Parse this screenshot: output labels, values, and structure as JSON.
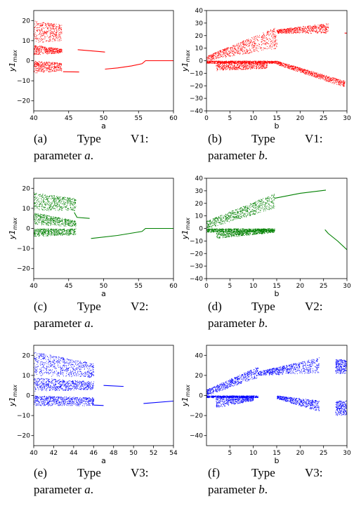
{
  "chart_data": [
    {
      "id": "a",
      "type": "scatter",
      "color": "#ff0000",
      "xlabel": "a",
      "ylabel": "y1_max",
      "xlim": [
        40,
        60
      ],
      "ylim": [
        -25,
        25
      ],
      "xticks": [
        40,
        45,
        50,
        55,
        60
      ],
      "yticks": [
        -20,
        -10,
        0,
        10,
        20
      ],
      "features": [
        {
          "kind": "band",
          "x": [
            40,
            44
          ],
          "y_low": [
            9,
            10
          ],
          "y_high": [
            20,
            18
          ]
        },
        {
          "kind": "band",
          "x": [
            40,
            44
          ],
          "y_low": [
            3,
            4
          ],
          "y_high": [
            8,
            6
          ]
        },
        {
          "kind": "band",
          "x": [
            40,
            44
          ],
          "y_low": [
            -6,
            -5
          ],
          "y_high": [
            0,
            -1
          ]
        },
        {
          "kind": "line",
          "points": [
            [
              44.2,
              -5.5
            ],
            [
              46.5,
              -5.6
            ]
          ]
        },
        {
          "kind": "line",
          "points": [
            [
              46.3,
              5.5
            ],
            [
              50.2,
              4.3
            ]
          ]
        },
        {
          "kind": "line",
          "points": [
            [
              50.2,
              -4.2
            ],
            [
              52,
              -3.6
            ],
            [
              54,
              -2.6
            ],
            [
              55.5,
              -1.5
            ],
            [
              56,
              0
            ],
            [
              60,
              0
            ]
          ]
        }
      ]
    },
    {
      "id": "b",
      "type": "scatter",
      "color": "#ff0000",
      "xlabel": "b",
      "ylabel": "y1_max",
      "xlim": [
        0,
        30
      ],
      "ylim": [
        -40,
        40
      ],
      "xticks": [
        0,
        5,
        10,
        15,
        20,
        25,
        30
      ],
      "yticks": [
        -40,
        -30,
        -20,
        -10,
        0,
        10,
        20,
        30,
        40
      ],
      "features": [
        {
          "kind": "band",
          "x": [
            0,
            15
          ],
          "y_low": [
            0,
            10
          ],
          "y_high": [
            4,
            27
          ]
        },
        {
          "kind": "band",
          "x": [
            15,
            26
          ],
          "y_low": [
            22,
            22
          ],
          "y_high": [
            25,
            30
          ]
        },
        {
          "kind": "band",
          "x": [
            0,
            15
          ],
          "y_low": [
            -2,
            -2
          ],
          "y_high": [
            0,
            0
          ]
        },
        {
          "kind": "band",
          "x": [
            2,
            13
          ],
          "y_low": [
            -8,
            -6
          ],
          "y_high": [
            -1,
            -1
          ]
        },
        {
          "kind": "band",
          "x": [
            15,
            29.5
          ],
          "y_low": [
            -3,
            -21
          ],
          "y_high": [
            0,
            -16
          ]
        },
        {
          "kind": "line",
          "points": [
            [
              29.5,
              22
            ],
            [
              30,
              22
            ]
          ]
        }
      ]
    },
    {
      "id": "c",
      "type": "scatter",
      "color": "#008000",
      "xlabel": "a",
      "ylabel": "y1_max",
      "xlim": [
        40,
        60
      ],
      "ylim": [
        -25,
        25
      ],
      "xticks": [
        40,
        45,
        50,
        55,
        60
      ],
      "yticks": [
        -20,
        -10,
        0,
        10,
        20
      ],
      "features": [
        {
          "kind": "band",
          "x": [
            40,
            46
          ],
          "y_low": [
            9,
            9
          ],
          "y_high": [
            18,
            15
          ]
        },
        {
          "kind": "band",
          "x": [
            40,
            46
          ],
          "y_low": [
            2,
            1
          ],
          "y_high": [
            8,
            4
          ]
        },
        {
          "kind": "band",
          "x": [
            40,
            46
          ],
          "y_low": [
            -4,
            -3
          ],
          "y_high": [
            0,
            0
          ]
        },
        {
          "kind": "line",
          "points": [
            [
              45.8,
              8
            ],
            [
              46.2,
              5.5
            ],
            [
              48,
              5
            ]
          ]
        },
        {
          "kind": "line",
          "points": [
            [
              48.2,
              -5
            ],
            [
              52,
              -3.5
            ],
            [
              55.5,
              -1.5
            ],
            [
              56,
              0
            ],
            [
              60,
              0
            ]
          ]
        }
      ]
    },
    {
      "id": "d",
      "type": "scatter",
      "color": "#008000",
      "xlabel": "b",
      "ylabel": "y1_max",
      "xlim": [
        0,
        30
      ],
      "ylim": [
        -40,
        40
      ],
      "xticks": [
        0,
        5,
        10,
        15,
        20,
        25,
        30
      ],
      "yticks": [
        -40,
        -30,
        -20,
        -10,
        0,
        10,
        20,
        30,
        40
      ],
      "features": [
        {
          "kind": "band",
          "x": [
            0,
            14.5
          ],
          "y_low": [
            0,
            16
          ],
          "y_high": [
            6,
            28
          ]
        },
        {
          "kind": "band",
          "x": [
            0,
            14.5
          ],
          "y_low": [
            -3,
            -2
          ],
          "y_high": [
            0,
            0
          ]
        },
        {
          "kind": "band",
          "x": [
            2,
            14.5
          ],
          "y_low": [
            -8,
            -3
          ],
          "y_high": [
            -2,
            -1
          ]
        },
        {
          "kind": "line",
          "points": [
            [
              14.5,
              24
            ],
            [
              20,
              28
            ],
            [
              25.5,
              30.5
            ]
          ]
        },
        {
          "kind": "line",
          "points": [
            [
              25.3,
              -1
            ],
            [
              26,
              -4
            ],
            [
              28,
              -10
            ],
            [
              30,
              -17
            ]
          ]
        }
      ]
    },
    {
      "id": "e",
      "type": "scatter",
      "color": "#0000ff",
      "xlabel": "a",
      "ylabel": "y1_max",
      "xlim": [
        40,
        54
      ],
      "ylim": [
        -25,
        25
      ],
      "xticks": [
        40,
        42,
        44,
        46,
        48,
        50,
        52,
        54
      ],
      "yticks": [
        -20,
        -10,
        0,
        10,
        20
      ],
      "features": [
        {
          "kind": "band",
          "x": [
            40,
            46
          ],
          "y_low": [
            10,
            9
          ],
          "y_high": [
            22,
            16
          ]
        },
        {
          "kind": "band",
          "x": [
            40,
            46
          ],
          "y_low": [
            2,
            3
          ],
          "y_high": [
            9,
            7
          ]
        },
        {
          "kind": "band",
          "x": [
            40,
            46
          ],
          "y_low": [
            -5,
            -5
          ],
          "y_high": [
            0,
            -1
          ]
        },
        {
          "kind": "line",
          "points": [
            [
              46,
              -4.8
            ],
            [
              47,
              -5
            ]
          ]
        },
        {
          "kind": "line",
          "points": [
            [
              47,
              5
            ],
            [
              49,
              4.5
            ]
          ]
        },
        {
          "kind": "line",
          "points": [
            [
              51,
              -4
            ],
            [
              54,
              -2.8
            ]
          ]
        }
      ]
    },
    {
      "id": "f",
      "type": "scatter",
      "color": "#0000ff",
      "xlabel": "b",
      "ylabel": "y1_max",
      "xlim": [
        0,
        30
      ],
      "ylim": [
        -50,
        50
      ],
      "xticks": [
        5,
        10,
        15,
        20,
        25,
        30
      ],
      "yticks": [
        -40,
        -20,
        0,
        20,
        40
      ],
      "features": [
        {
          "kind": "band",
          "x": [
            0,
            11
          ],
          "y_low": [
            0,
            18
          ],
          "y_high": [
            6,
            29
          ]
        },
        {
          "kind": "band",
          "x": [
            11,
            24
          ],
          "y_low": [
            20,
            23
          ],
          "y_high": [
            24,
            38
          ]
        },
        {
          "kind": "band",
          "x": [
            0,
            11
          ],
          "y_low": [
            -2,
            -2
          ],
          "y_high": [
            0,
            0
          ]
        },
        {
          "kind": "band",
          "x": [
            2,
            10
          ],
          "y_low": [
            -12,
            -5
          ],
          "y_high": [
            -2,
            -1
          ]
        },
        {
          "kind": "band",
          "x": [
            15,
            24
          ],
          "y_low": [
            -3,
            -16
          ],
          "y_high": [
            0,
            -5
          ]
        },
        {
          "kind": "band",
          "x": [
            27.5,
            30
          ],
          "y_low": [
            22,
            22
          ],
          "y_high": [
            36,
            36
          ]
        },
        {
          "kind": "band",
          "x": [
            27.5,
            30
          ],
          "y_low": [
            -20,
            -20
          ],
          "y_high": [
            -5,
            -5
          ]
        }
      ]
    }
  ],
  "captions": [
    {
      "id": "a",
      "label": "(a)",
      "word": "Type",
      "type": "V1:",
      "line2": "parameter",
      "param": "a",
      "end": "."
    },
    {
      "id": "b",
      "label": "(b)",
      "word": "Type",
      "type": "V1:",
      "line2": "parameter",
      "param": "b",
      "end": "."
    },
    {
      "id": "c",
      "label": "(c)",
      "word": "Type",
      "type": "V2:",
      "line2": "parameter",
      "param": "a",
      "end": "."
    },
    {
      "id": "d",
      "label": "(d)",
      "word": "Type",
      "type": "V2:",
      "line2": "parameter",
      "param": "b",
      "end": "."
    },
    {
      "id": "e",
      "label": "(e)",
      "word": "Type",
      "type": "V3:",
      "line2": "parameter",
      "param": "a",
      "end": "."
    },
    {
      "id": "f",
      "label": "(f)",
      "word": "Type",
      "type": "V3:",
      "line2": "parameter",
      "param": "b",
      "end": "."
    }
  ]
}
